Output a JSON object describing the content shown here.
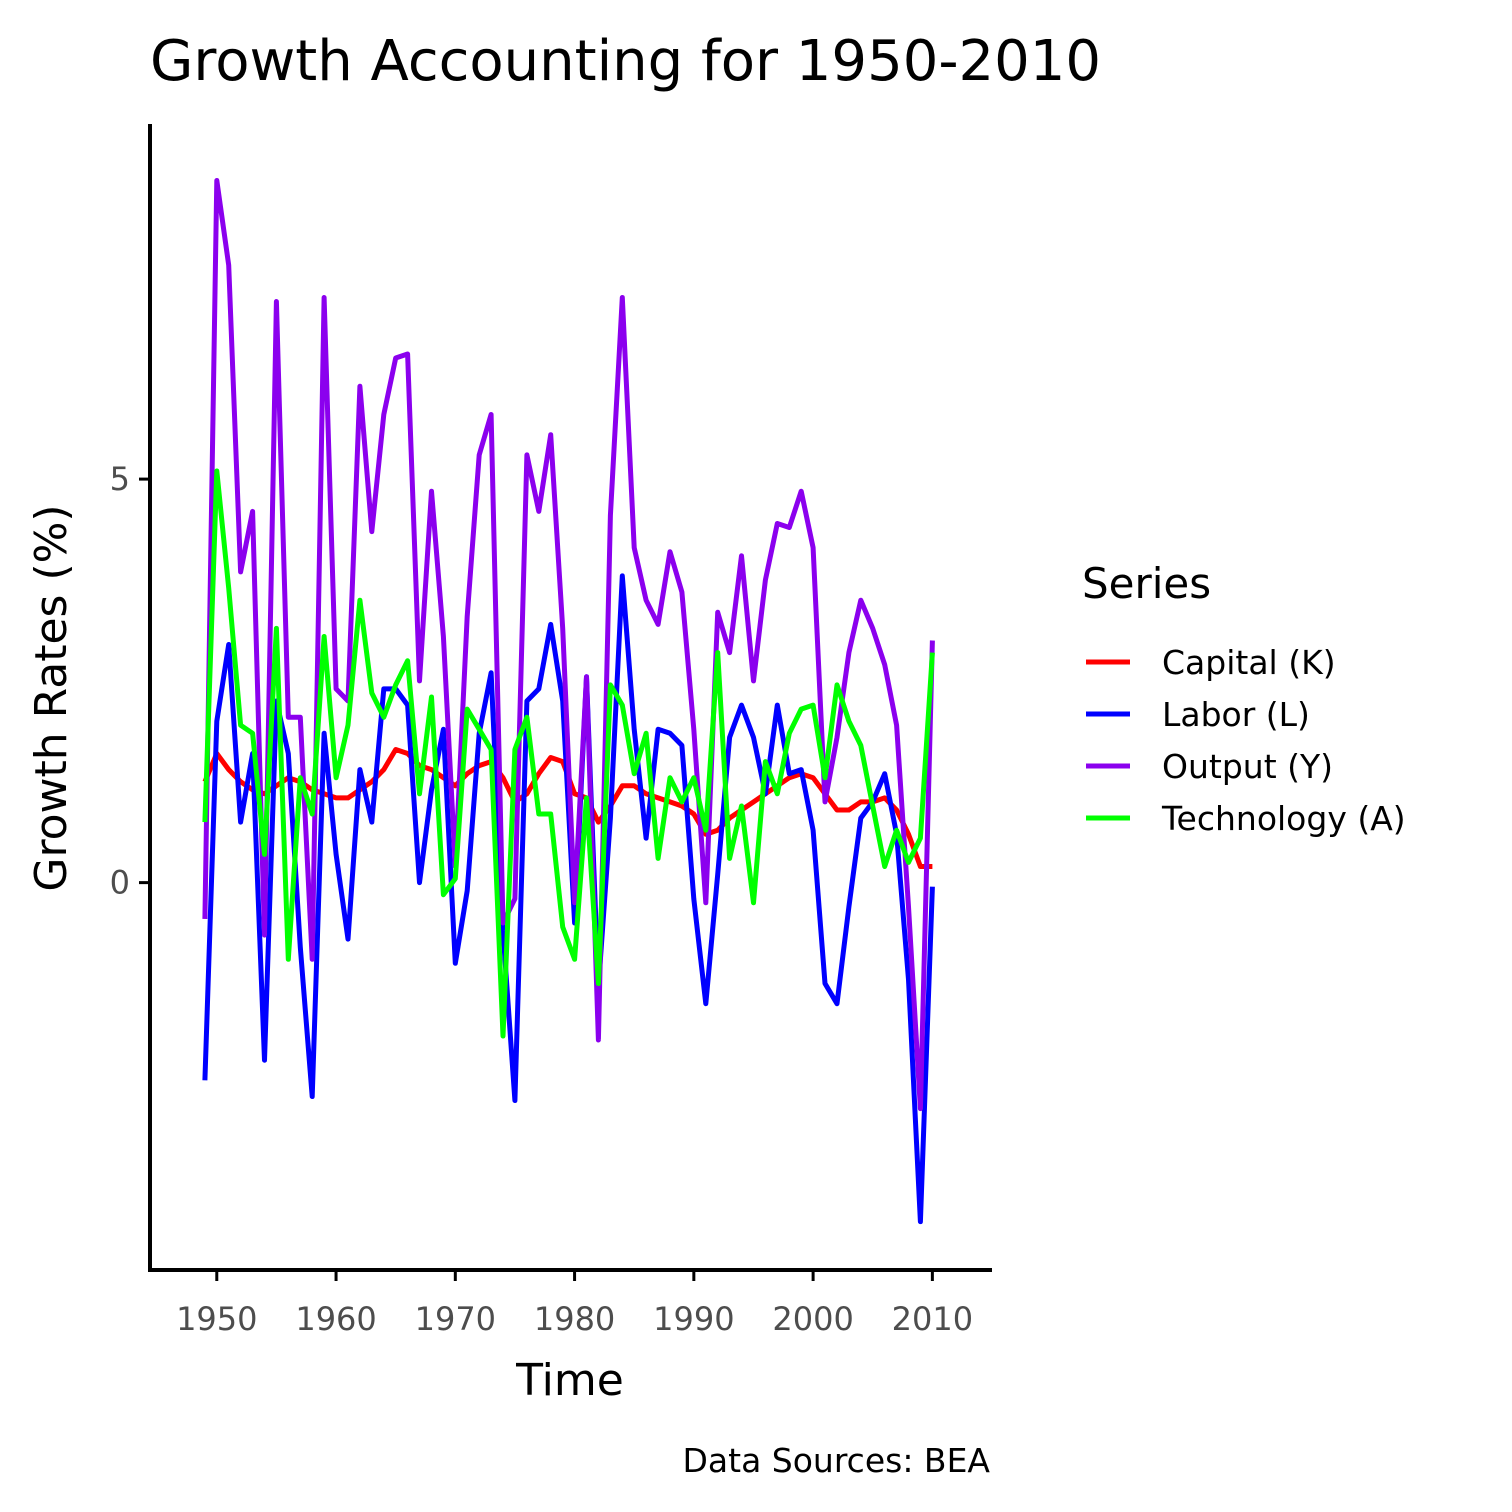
{
  "chart_data": {
    "type": "line",
    "title": "Growth Accounting for 1950-2010",
    "xlabel": "Time",
    "ylabel": "Growth Rates (%)",
    "caption": "Data Sources: BEA",
    "legend_title": "Series",
    "legend_position": "right",
    "grid": false,
    "xlim": [
      1944.4,
      2015.0
    ],
    "ylim": [
      -4.8,
      9.4
    ],
    "x_ticks": [
      1950,
      1960,
      1970,
      1980,
      1990,
      2000,
      2010
    ],
    "y_ticks": [
      0,
      5
    ],
    "x": [
      1949,
      1950,
      1951,
      1952,
      1953,
      1954,
      1955,
      1956,
      1957,
      1958,
      1959,
      1960,
      1961,
      1962,
      1963,
      1964,
      1965,
      1966,
      1967,
      1968,
      1969,
      1970,
      1971,
      1972,
      1973,
      1974,
      1975,
      1976,
      1977,
      1978,
      1979,
      1980,
      1981,
      1982,
      1983,
      1984,
      1985,
      1986,
      1987,
      1988,
      1989,
      1990,
      1991,
      1992,
      1993,
      1994,
      1995,
      1996,
      1997,
      1998,
      1999,
      2000,
      2001,
      2002,
      2003,
      2004,
      2005,
      2006,
      2007,
      2008,
      2009,
      2010
    ],
    "series": [
      {
        "name": "Capital (K)",
        "color": "#ff0000",
        "values": [
          1.25,
          1.6,
          1.4,
          1.25,
          1.15,
          1.1,
          1.2,
          1.3,
          1.25,
          1.15,
          1.1,
          1.05,
          1.05,
          1.15,
          1.25,
          1.4,
          1.65,
          1.6,
          1.45,
          1.4,
          1.3,
          1.2,
          1.35,
          1.45,
          1.5,
          1.3,
          1.0,
          1.1,
          1.35,
          1.55,
          1.5,
          1.1,
          1.05,
          0.75,
          0.95,
          1.2,
          1.2,
          1.1,
          1.05,
          1.0,
          0.95,
          0.85,
          0.6,
          0.65,
          0.8,
          0.9,
          1.0,
          1.1,
          1.2,
          1.3,
          1.35,
          1.3,
          1.1,
          0.9,
          0.9,
          1.0,
          1.0,
          1.05,
          0.9,
          0.6,
          0.2,
          0.2
        ]
      },
      {
        "name": "Labor (L)",
        "color": "#0000ff",
        "values": [
          -2.45,
          2.0,
          2.95,
          0.75,
          1.6,
          -2.2,
          2.25,
          1.6,
          -0.8,
          -2.65,
          1.85,
          0.35,
          -0.7,
          1.4,
          0.75,
          2.4,
          2.4,
          2.2,
          0.0,
          1.15,
          1.9,
          -1.0,
          -0.1,
          1.85,
          2.6,
          -0.6,
          -2.7,
          2.25,
          2.4,
          3.2,
          2.25,
          -0.5,
          2.55,
          -1.3,
          0.8,
          3.8,
          1.9,
          0.55,
          1.9,
          1.85,
          1.7,
          -0.2,
          -1.5,
          0.1,
          1.8,
          2.2,
          1.8,
          1.1,
          2.2,
          1.35,
          1.4,
          0.65,
          -1.25,
          -1.5,
          -0.3,
          0.8,
          1.0,
          1.35,
          0.6,
          -1.2,
          -4.2,
          -0.05
        ]
      },
      {
        "name": "Output (Y)",
        "color": "#8b00ee",
        "values": [
          -0.45,
          8.7,
          7.65,
          3.85,
          4.6,
          -0.65,
          7.2,
          2.05,
          2.05,
          -0.95,
          7.25,
          2.4,
          2.25,
          6.15,
          4.35,
          5.8,
          6.5,
          6.55,
          2.5,
          4.85,
          3.05,
          0.2,
          3.3,
          5.3,
          5.8,
          -0.5,
          -0.2,
          5.3,
          4.6,
          5.55,
          3.15,
          -0.25,
          2.55,
          -1.95,
          4.55,
          7.25,
          4.15,
          3.5,
          3.2,
          4.1,
          3.6,
          1.9,
          -0.25,
          3.35,
          2.85,
          4.05,
          2.5,
          3.75,
          4.45,
          4.4,
          4.85,
          4.15,
          1.0,
          1.8,
          2.85,
          3.5,
          3.15,
          2.7,
          1.95,
          -0.3,
          -2.8,
          3.0
        ]
      },
      {
        "name": "Technology (A)",
        "color": "#00ff00",
        "values": [
          0.75,
          5.1,
          3.65,
          1.95,
          1.85,
          0.35,
          3.15,
          -0.95,
          1.3,
          0.85,
          3.05,
          1.3,
          1.95,
          3.5,
          2.35,
          2.05,
          2.45,
          2.75,
          1.1,
          2.3,
          -0.15,
          0.05,
          2.15,
          1.9,
          1.65,
          -1.9,
          1.65,
          2.05,
          0.85,
          0.85,
          -0.55,
          -0.95,
          1.05,
          -1.25,
          2.45,
          2.2,
          1.35,
          1.85,
          0.3,
          1.3,
          1.0,
          1.3,
          0.65,
          2.85,
          0.3,
          0.95,
          -0.25,
          1.5,
          1.1,
          1.85,
          2.15,
          2.2,
          1.3,
          2.45,
          2.0,
          1.7,
          0.95,
          0.2,
          0.65,
          0.25,
          0.55,
          2.85
        ]
      }
    ]
  }
}
